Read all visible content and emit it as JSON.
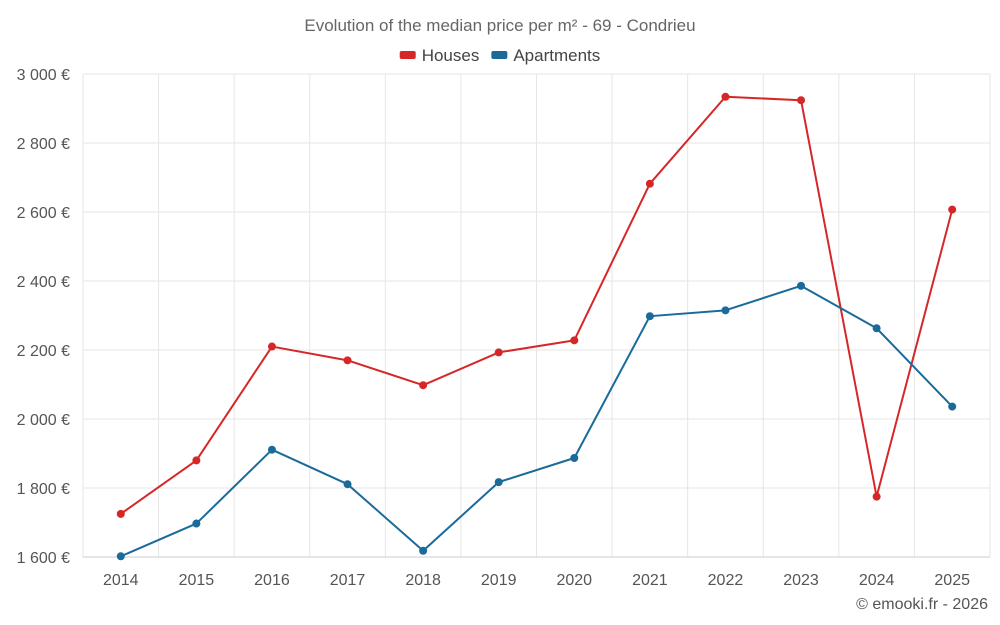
{
  "chart_data": {
    "type": "line",
    "title": "Evolution of the median price per m² - 69 - Condrieu",
    "categories": [
      "2014",
      "2015",
      "2016",
      "2017",
      "2018",
      "2019",
      "2020",
      "2021",
      "2022",
      "2023",
      "2024",
      "2025"
    ],
    "series": [
      {
        "name": "Houses",
        "color": "#d62728",
        "values": [
          1725,
          1880,
          2210,
          2170,
          2098,
          2193,
          2228,
          2682,
          2934,
          2924,
          1775,
          2607
        ]
      },
      {
        "name": "Apartments",
        "color": "#1a6a9a",
        "values": [
          1602,
          1697,
          1911,
          1811,
          1618,
          1817,
          1887,
          2298,
          2315,
          2386,
          2263,
          2036
        ]
      }
    ],
    "ylim": [
      1600,
      3000
    ],
    "yticks": [
      1600,
      1800,
      2000,
      2200,
      2400,
      2600,
      2800,
      3000
    ],
    "ytick_labels": [
      "1 600 €",
      "1 800 €",
      "2 000 €",
      "2 200 €",
      "2 400 €",
      "2 600 €",
      "2 800 €",
      "3 000 €"
    ],
    "xlabel": "",
    "ylabel": "",
    "grid": true,
    "legend_position": "top-center"
  },
  "credit": "© emooki.fr - 2026"
}
